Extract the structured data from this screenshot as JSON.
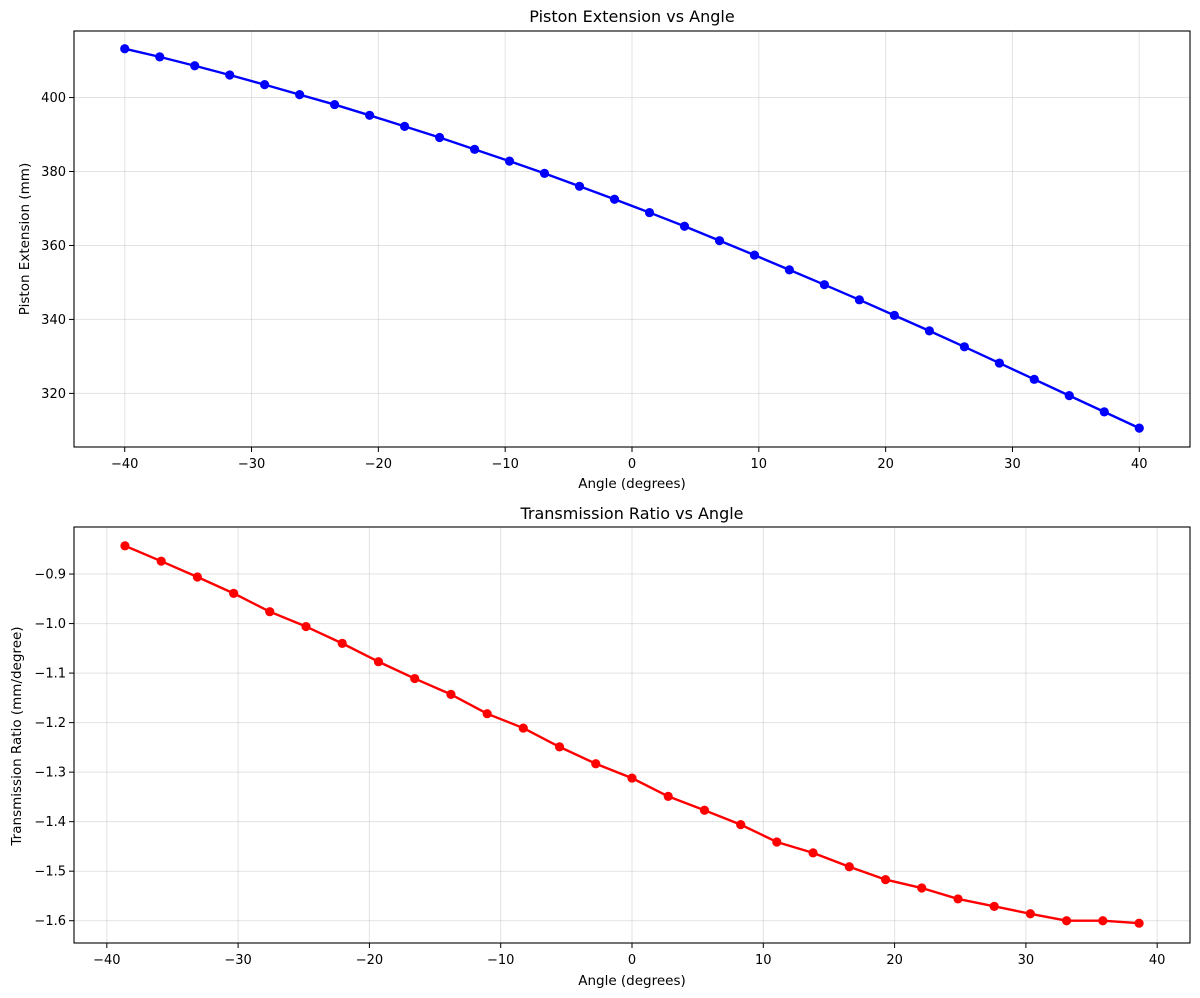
{
  "chart_data": [
    {
      "type": "line",
      "title": "Piston Extension vs Angle",
      "xlabel": "Angle (degrees)",
      "ylabel": "Piston Extension (mm)",
      "xlim": [
        -44,
        44
      ],
      "ylim": [
        305.5,
        418
      ],
      "xticks": [
        -40,
        -30,
        -20,
        -10,
        0,
        10,
        20,
        30,
        40
      ],
      "yticks": [
        320,
        340,
        360,
        380,
        400
      ],
      "grid": true,
      "color": "#0000ff",
      "series": [
        {
          "x": [
            -40,
            -37.24,
            -34.48,
            -31.72,
            -28.97,
            -26.21,
            -23.45,
            -20.69,
            -17.93,
            -15.17,
            -12.41,
            -9.66,
            -6.9,
            -4.14,
            -1.38,
            1.38,
            4.14,
            6.9,
            9.66,
            12.41,
            15.17,
            17.93,
            20.69,
            23.45,
            26.21,
            28.97,
            31.72,
            34.48,
            37.24,
            40
          ],
          "y": [
            413.2,
            411.0,
            408.6,
            406.1,
            403.5,
            400.8,
            398.1,
            395.2,
            392.2,
            389.2,
            386.0,
            382.8,
            379.5,
            376.0,
            372.5,
            368.9,
            365.2,
            361.3,
            357.4,
            353.4,
            349.4,
            345.3,
            341.1,
            336.9,
            332.6,
            328.2,
            323.8,
            319.4,
            315.0,
            310.6
          ]
        }
      ]
    },
    {
      "type": "line",
      "title": "Transmission Ratio vs Angle",
      "xlabel": "Angle (degrees)",
      "ylabel": "Transmission Ratio (mm/degree)",
      "xlim": [
        -42.5,
        42.5
      ],
      "ylim": [
        -1.645,
        -0.805
      ],
      "xticks": [
        -40,
        -30,
        -20,
        -10,
        0,
        10,
        20,
        30,
        40
      ],
      "yticks": [
        -1.6,
        -1.5,
        -1.4,
        -1.3,
        -1.2,
        -1.1,
        -1.0,
        -0.9
      ],
      "ytick_labels": [
        "−1.6",
        "−1.5",
        "−1.4",
        "−1.3",
        "−1.2",
        "−1.1",
        "−1.0",
        "−0.9"
      ],
      "grid": true,
      "color": "#ff0000",
      "series": [
        {
          "x": [
            -38.62,
            -35.86,
            -33.1,
            -30.34,
            -27.59,
            -24.83,
            -22.07,
            -19.31,
            -16.55,
            -13.79,
            -11.03,
            -8.28,
            -5.52,
            -2.76,
            0,
            2.76,
            5.52,
            8.28,
            11.03,
            13.79,
            16.55,
            19.31,
            22.07,
            24.83,
            27.59,
            30.34,
            33.1,
            35.86,
            38.62
          ],
          "y": [
            -0.843,
            -0.874,
            -0.906,
            -0.939,
            -0.976,
            -1.006,
            -1.04,
            -1.077,
            -1.111,
            -1.143,
            -1.182,
            -1.211,
            -1.249,
            -1.283,
            -1.312,
            -1.349,
            -1.377,
            -1.406,
            -1.441,
            -1.463,
            -1.491,
            -1.517,
            -1.534,
            -1.556,
            -1.571,
            -1.586,
            -1.6,
            -1.6,
            -1.605
          ]
        }
      ]
    }
  ]
}
